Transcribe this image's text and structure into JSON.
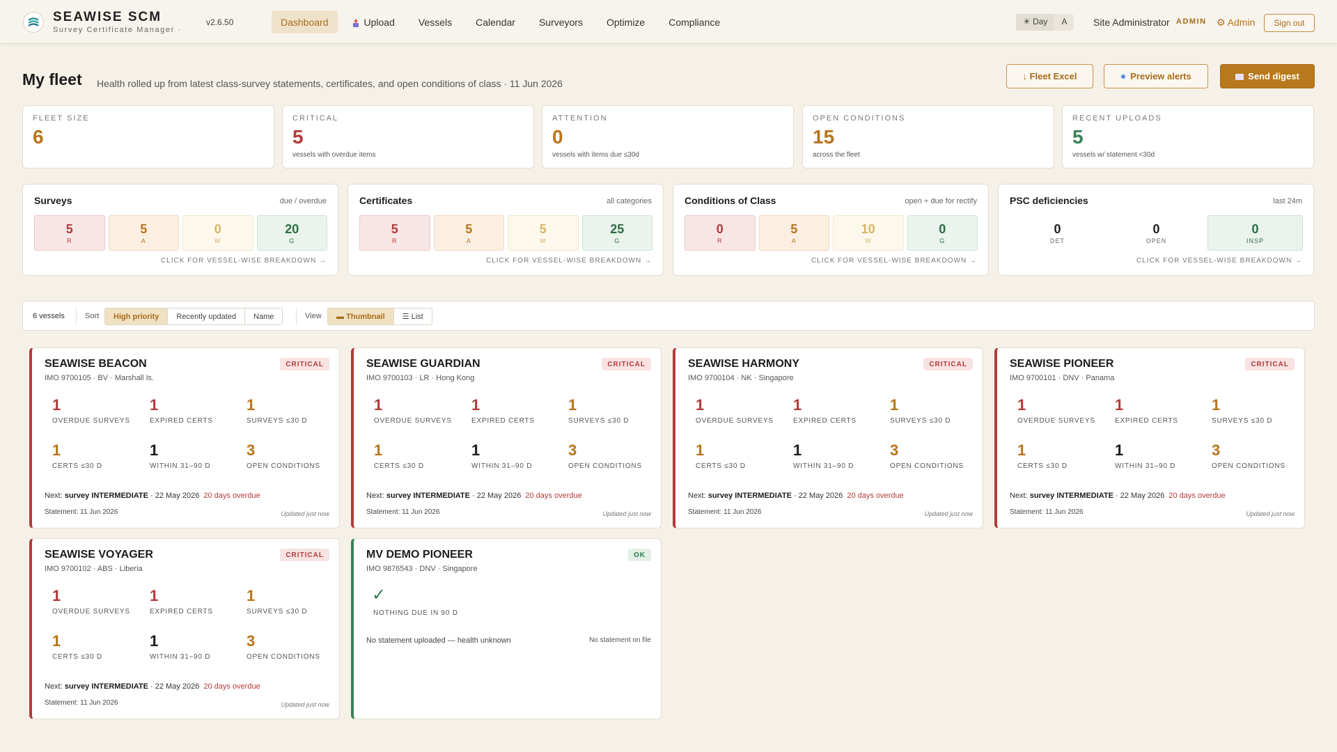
{
  "app": {
    "name": "SEAWISE SCM",
    "subtitle": "Survey Certificate Manager ·",
    "version": "v2.6.50"
  },
  "nav": [
    {
      "label": "Dashboard",
      "active": true
    },
    {
      "label": "Upload",
      "icon": "upload-icon"
    },
    {
      "label": "Vessels"
    },
    {
      "label": "Calendar"
    },
    {
      "label": "Surveyors"
    },
    {
      "label": "Optimize"
    },
    {
      "label": "Compliance"
    }
  ],
  "user": {
    "theme_day": "☀ Day",
    "theme_a": "A",
    "name": "Site Administrator",
    "role": "ADMIN",
    "admin_link": "⚙ Admin",
    "sign_out": "Sign out"
  },
  "page": {
    "title": "My fleet",
    "description": "Health rolled up from latest class-survey statements, certificates, and open conditions of class · 11 Jun 2026"
  },
  "actions": {
    "fleet_excel": "↓ Fleet Excel",
    "preview_alerts": "Preview alerts",
    "send_digest": "Send digest"
  },
  "stats": [
    {
      "label": "FLEET SIZE",
      "value": "6",
      "sub": "",
      "color": "#b8741c"
    },
    {
      "label": "CRITICAL",
      "value": "5",
      "sub": "vessels with overdue items",
      "color": "#b33a3a"
    },
    {
      "label": "ATTENTION",
      "value": "0",
      "sub": "vessels with items due ≤30d",
      "color": "#b8741c"
    },
    {
      "label": "OPEN CONDITIONS",
      "value": "15",
      "sub": "across the fleet",
      "color": "#b8741c"
    },
    {
      "label": "RECENT UPLOADS",
      "value": "5",
      "sub": "vessels w/ statement <30d",
      "color": "#3b8157"
    }
  ],
  "panels": [
    {
      "title": "Surveys",
      "note": "due / overdue",
      "link": "CLICK FOR VESSEL-WISE BREAKDOWN →",
      "tiles": [
        {
          "v": "5",
          "l": "R"
        },
        {
          "v": "5",
          "l": "A"
        },
        {
          "v": "0",
          "l": "W"
        },
        {
          "v": "20",
          "l": "G"
        }
      ]
    },
    {
      "title": "Certificates",
      "note": "all categories",
      "link": "CLICK FOR VESSEL-WISE BREAKDOWN →",
      "tiles": [
        {
          "v": "5",
          "l": "R"
        },
        {
          "v": "5",
          "l": "A"
        },
        {
          "v": "5",
          "l": "W"
        },
        {
          "v": "25",
          "l": "G"
        }
      ]
    },
    {
      "title": "Conditions of Class",
      "note": "open + due for rectify",
      "link": "CLICK FOR VESSEL-WISE BREAKDOWN →",
      "tiles": [
        {
          "v": "0",
          "l": "R"
        },
        {
          "v": "5",
          "l": "A"
        },
        {
          "v": "10",
          "l": "W"
        },
        {
          "v": "0",
          "l": "G"
        }
      ]
    },
    {
      "title": "PSC deficiencies",
      "note": "last 24m",
      "link": "CLICK FOR VESSEL-WISE BREAKDOWN →",
      "tiles": [
        {
          "v": "0",
          "l": "DET"
        },
        {
          "v": "0",
          "l": "OPEN"
        },
        {
          "v": "0",
          "l": "INSP"
        }
      ]
    }
  ],
  "toolbar": {
    "count": "6 vessels",
    "sort_label": "Sort",
    "sort_options": [
      "High priority",
      "Recently updated",
      "Name"
    ],
    "view_label": "View",
    "view_thumbnail": "▬ Thumbnail",
    "view_list": "☰ List"
  },
  "metric_labels": {
    "overdue_surveys": "OVERDUE SURVEYS",
    "expired_certs": "EXPIRED CERTS",
    "surveys_30": "SURVEYS ≤30 D",
    "certs_30": "CERTS ≤30 D",
    "within_31_90": "WITHIN 31–90 D",
    "open_conditions": "OPEN CONDITIONS"
  },
  "vessels": [
    {
      "name": "SEAWISE BEACON",
      "sub": "IMO 9700105 · BV · Marshall Is.",
      "status": "CRITICAL",
      "m": [
        "1",
        "1",
        "1",
        "1",
        "1",
        "3"
      ],
      "next_prefix": "Next:",
      "next_item": "survey INTERMEDIATE",
      "next_date": "· 22 May 2026",
      "next_overdue": "20 days overdue",
      "statement": "Statement: 11 Jun 2026",
      "updated": "Updated just now"
    },
    {
      "name": "SEAWISE GUARDIAN",
      "sub": "IMO 9700103 · LR · Hong Kong",
      "status": "CRITICAL",
      "m": [
        "1",
        "1",
        "1",
        "1",
        "1",
        "3"
      ],
      "next_prefix": "Next:",
      "next_item": "survey INTERMEDIATE",
      "next_date": "· 22 May 2026",
      "next_overdue": "20 days overdue",
      "statement": "Statement: 11 Jun 2026",
      "updated": "Updated just now"
    },
    {
      "name": "SEAWISE HARMONY",
      "sub": "IMO 9700104 · NK · Singapore",
      "status": "CRITICAL",
      "m": [
        "1",
        "1",
        "1",
        "1",
        "1",
        "3"
      ],
      "next_prefix": "Next:",
      "next_item": "survey INTERMEDIATE",
      "next_date": "· 22 May 2026",
      "next_overdue": "20 days overdue",
      "statement": "Statement: 11 Jun 2026",
      "updated": "Updated just now"
    },
    {
      "name": "SEAWISE PIONEER",
      "sub": "IMO 9700101 · DNV · Panama",
      "status": "CRITICAL",
      "m": [
        "1",
        "1",
        "1",
        "1",
        "1",
        "3"
      ],
      "next_prefix": "Next:",
      "next_item": "survey INTERMEDIATE",
      "next_date": "· 22 May 2026",
      "next_overdue": "20 days overdue",
      "statement": "Statement: 11 Jun 2026",
      "updated": "Updated just now"
    },
    {
      "name": "SEAWISE VOYAGER",
      "sub": "IMO 9700102 · ABS · Liberia",
      "status": "CRITICAL",
      "m": [
        "1",
        "1",
        "1",
        "1",
        "1",
        "3"
      ],
      "next_prefix": "Next:",
      "next_item": "survey INTERMEDIATE",
      "next_date": "· 22 May 2026",
      "next_overdue": "20 days overdue",
      "statement": "Statement: 11 Jun 2026",
      "updated": "Updated just now"
    },
    {
      "name": "MV DEMO PIONEER",
      "sub": "IMO 9876543 · DNV · Singapore",
      "status": "OK",
      "check": "✓",
      "nothing_due": "NOTHING DUE IN 90 D",
      "no_statement": "No statement uploaded — health unknown",
      "no_file": "No statement on file"
    }
  ]
}
